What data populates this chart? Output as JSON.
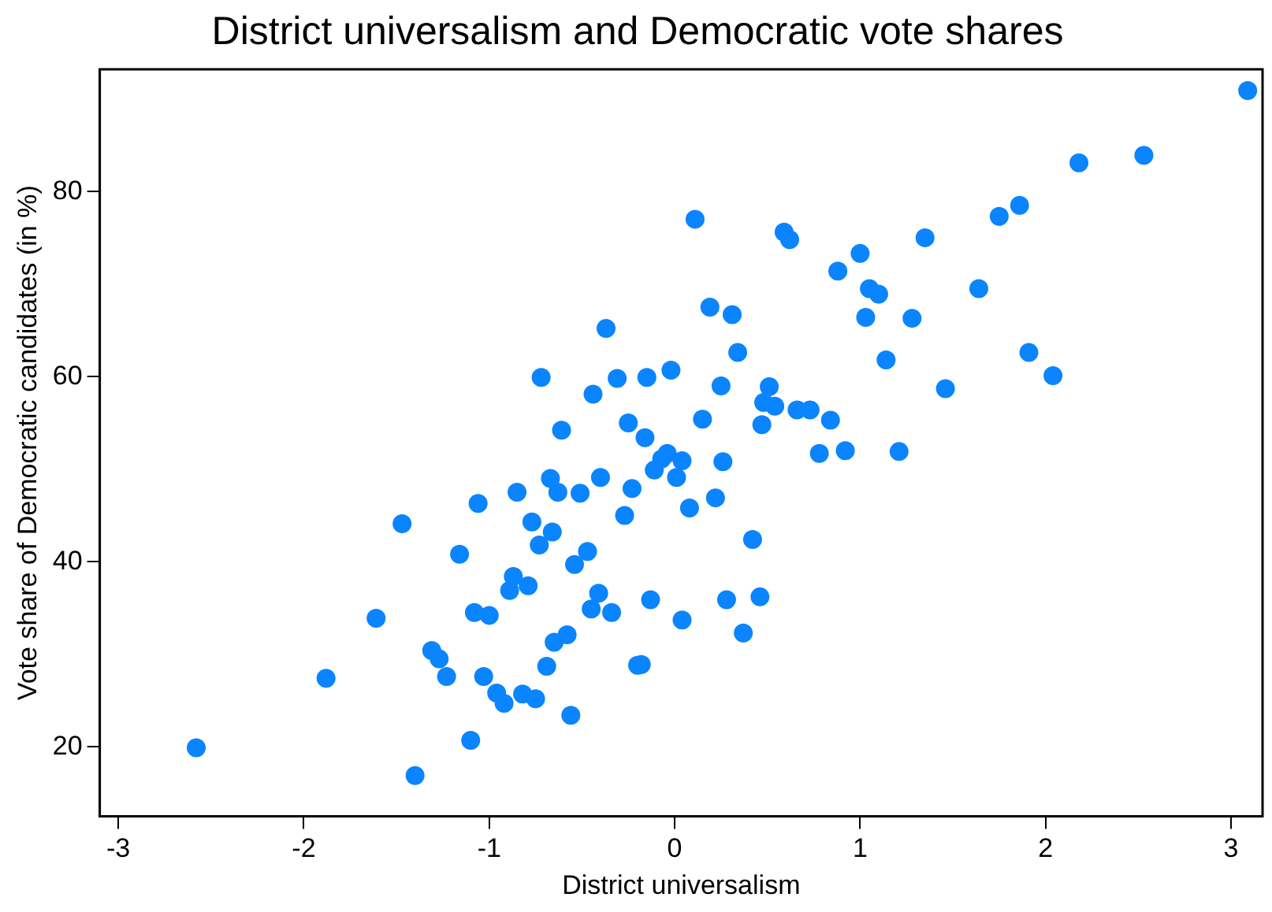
{
  "chart_data": {
    "type": "scatter",
    "title": "District universalism and Democratic vote shares",
    "xlabel": "District universalism",
    "ylabel": "Vote share of Democratic candidates (in %)",
    "xlim": [
      -3.1,
      3.17
    ],
    "xticks": [
      -3,
      -2,
      -1,
      0,
      1,
      2,
      3
    ],
    "ylim": [
      12.5,
      93.2
    ],
    "yticks": [
      20,
      40,
      60,
      80
    ],
    "grid": false,
    "legend": false,
    "marker": "circle",
    "series": [
      {
        "color": "#0a84ff",
        "x": [
          -2.58,
          -1.4,
          -1.88,
          -1.61,
          -1.47,
          -1.31,
          -1.27,
          -1.23,
          -1.16,
          -1.1,
          -1.03,
          -1.08,
          -1.0,
          -1.06,
          -0.96,
          -0.92,
          -0.82,
          -0.75,
          -0.69,
          -0.56,
          -0.65,
          -0.58,
          -0.89,
          -0.87,
          -0.79,
          -0.73,
          -0.66,
          -0.77,
          -0.85,
          -0.67,
          -0.63,
          -0.51,
          -0.4,
          -0.54,
          -0.47,
          -0.41,
          -0.45,
          -0.34,
          -0.27,
          -0.23,
          -0.13,
          -0.2,
          -0.18,
          -0.11,
          -0.07,
          -0.04,
          0.01,
          0.04,
          -0.16,
          -0.61,
          -0.37,
          -0.72,
          -0.44,
          -0.31,
          -0.15,
          -0.02,
          -0.25,
          3.09,
          2.53,
          2.18,
          1.86,
          1.75,
          1.35,
          0.11,
          0.59,
          0.62,
          1.0,
          0.88,
          1.05,
          1.1,
          1.64,
          1.03,
          1.28,
          1.14,
          1.91,
          2.04,
          1.46,
          0.19,
          0.31,
          0.34,
          0.25,
          0.51,
          0.48,
          0.54,
          0.15,
          0.47,
          0.66,
          0.73,
          0.84,
          0.78,
          0.92,
          1.21,
          0.04,
          0.26,
          0.22,
          0.08,
          0.42,
          0.28,
          0.46,
          0.37
        ],
        "values": [
          19.9,
          16.9,
          27.4,
          33.9,
          44.1,
          30.4,
          29.5,
          27.6,
          40.8,
          20.7,
          27.6,
          34.5,
          34.2,
          46.3,
          25.8,
          24.7,
          25.7,
          25.2,
          28.7,
          23.4,
          31.3,
          32.1,
          36.9,
          38.4,
          37.4,
          41.8,
          43.2,
          44.3,
          47.5,
          49.0,
          47.5,
          47.4,
          49.1,
          39.7,
          41.1,
          36.6,
          34.9,
          34.5,
          45.0,
          47.9,
          35.9,
          28.8,
          28.9,
          49.9,
          51.1,
          51.7,
          49.1,
          33.7,
          53.4,
          54.2,
          65.2,
          59.9,
          58.1,
          59.8,
          59.9,
          60.7,
          55.0,
          90.9,
          83.9,
          83.1,
          78.5,
          77.3,
          75.0,
          77.0,
          75.6,
          74.8,
          73.3,
          71.4,
          69.5,
          68.9,
          69.5,
          66.4,
          66.3,
          61.8,
          62.6,
          60.1,
          58.7,
          67.5,
          66.7,
          62.6,
          59.0,
          58.9,
          57.2,
          56.8,
          55.4,
          54.8,
          56.4,
          56.4,
          55.3,
          51.7,
          52.0,
          51.9,
          50.9,
          50.8,
          46.9,
          45.8,
          42.4,
          35.9,
          36.2,
          32.3
        ]
      }
    ]
  }
}
